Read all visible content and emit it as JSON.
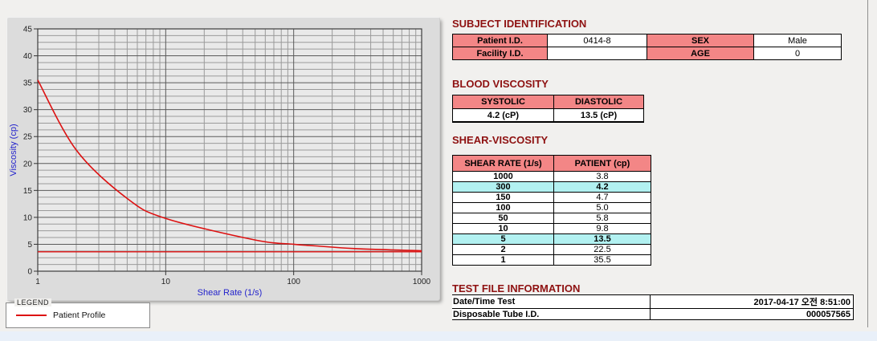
{
  "titles": {
    "subject": "SUBJECT IDENTIFICATION",
    "blood": "BLOOD VISCOSITY",
    "shear": "SHEAR-VISCOSITY",
    "test_file": "TEST FILE INFORMATION"
  },
  "subject": {
    "row1": {
      "label1": "Patient I.D.",
      "value1": "0414-8",
      "label2": "SEX",
      "value2": "Male"
    },
    "row2": {
      "label1": "Facility I.D.",
      "value1": "",
      "label2": "AGE",
      "value2": "0"
    }
  },
  "blood": {
    "header1": "SYSTOLIC",
    "header2": "DIASTOLIC",
    "value1": "4.2 (cP)",
    "value2": "13.5 (cP)"
  },
  "shear": {
    "header1": "SHEAR RATE (1/s)",
    "header2": "PATIENT (cp)",
    "rows": [
      {
        "rate": "1000",
        "patient": "3.8",
        "highlight": false
      },
      {
        "rate": "300",
        "patient": "4.2",
        "highlight": true
      },
      {
        "rate": "150",
        "patient": "4.7",
        "highlight": false
      },
      {
        "rate": "100",
        "patient": "5.0",
        "highlight": false
      },
      {
        "rate": "50",
        "patient": "5.8",
        "highlight": false
      },
      {
        "rate": "10",
        "patient": "9.8",
        "highlight": false
      },
      {
        "rate": "5",
        "patient": "13.5",
        "highlight": true
      },
      {
        "rate": "2",
        "patient": "22.5",
        "highlight": false
      },
      {
        "rate": "1",
        "patient": "35.5",
        "highlight": false
      }
    ]
  },
  "test_file": {
    "row1": {
      "label": "Date/Time Test",
      "value": "2017-04-17  오전 8:51:00"
    },
    "row2": {
      "label": "Disposable Tube I.D.",
      "value": "000057565"
    }
  },
  "legend": {
    "title": "LEGEND",
    "series_label": "Patient Profile"
  },
  "colors": {
    "title_red": "#8e1111",
    "header_salmon": "#f38686",
    "highlight_cyan": "#b2f1f1",
    "curve_red": "#dd1111",
    "axis_label_blue": "#2323cc",
    "widget_gray": "#dcdcdc",
    "plot_gray": "#e9e9e9"
  },
  "chart_data": {
    "type": "line",
    "title": "",
    "xlabel": "Shear Rate (1/s)",
    "ylabel": "Viscosity (cp)",
    "x_scale": "log",
    "xlim": [
      1,
      1000
    ],
    "ylim": [
      0,
      45
    ],
    "x_ticks": [
      1,
      10,
      100,
      1000
    ],
    "y_ticks": [
      0,
      5,
      10,
      15,
      20,
      25,
      30,
      35,
      40,
      45
    ],
    "y_minor_step": 1.25,
    "grid": true,
    "legend_position": "below-left",
    "series": [
      {
        "name": "Patient Profile",
        "color": "#dd1111",
        "points": [
          [
            1,
            35.5
          ],
          [
            2,
            22.5
          ],
          [
            5,
            13.5
          ],
          [
            10,
            9.8
          ],
          [
            50,
            5.8
          ],
          [
            100,
            5.0
          ],
          [
            150,
            4.7
          ],
          [
            300,
            4.2
          ],
          [
            1000,
            3.8
          ]
        ]
      }
    ],
    "reference_line": {
      "y": 3.6,
      "color": "#dd1111"
    }
  }
}
